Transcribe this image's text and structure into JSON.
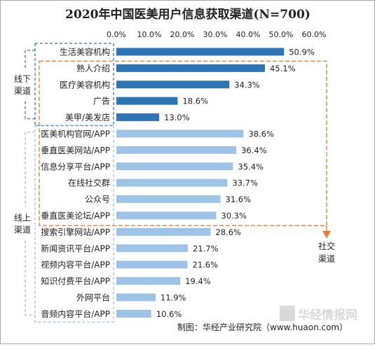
{
  "chart_data": {
    "type": "bar",
    "orientation": "horizontal",
    "title": "2020年中国医美用户信息获取渠道(N=700)",
    "categories": [
      "生活美容机构",
      "熟人介绍",
      "医疗美容机构",
      "广告",
      "美甲/美发店",
      "医美机构官网/APP",
      "垂直医美网站/APP",
      "信息分享平台/APP",
      "在线社交群",
      "公众号",
      "垂直医美论坛/APP",
      "搜索引擎网站/APP",
      "新闻资讯平台/APP",
      "视频内容平台/APP",
      "知识付费平台/APP",
      "外网平台",
      "音频内容平台/APP"
    ],
    "values": [
      50.9,
      45.1,
      34.3,
      18.6,
      13.0,
      38.6,
      36.4,
      35.4,
      33.7,
      31.6,
      30.3,
      28.6,
      21.7,
      21.6,
      19.4,
      11.9,
      10.6
    ],
    "value_labels": [
      "50.9%",
      "45.1%",
      "34.3%",
      "18.6%",
      "13.0%",
      "38.6%",
      "36.4%",
      "35.4%",
      "33.7%",
      "31.6%",
      "30.3%",
      "28.6%",
      "21.7%",
      "21.6%",
      "19.4%",
      "11.9%",
      "10.6%"
    ],
    "xlim": [
      0,
      60
    ],
    "ticks": [
      "0.0%",
      "10.0%",
      "20.0%",
      "30.0%",
      "40.0%",
      "50.0%",
      "60.0%"
    ],
    "tick_values": [
      0,
      10,
      20,
      30,
      40,
      50,
      60
    ],
    "groups": [
      {
        "label_lines": [
          "线下",
          "渠道"
        ],
        "color": "#2e75b6",
        "first": 0,
        "last": 4
      },
      {
        "label_lines": [
          "线上",
          "渠道"
        ],
        "color": "#9dc3e6",
        "first": 5,
        "last": 16
      }
    ],
    "annotation": {
      "label_lines": [
        "社交",
        "渠道"
      ],
      "color": "#ed7d31",
      "first": 1,
      "last": 11
    },
    "colors": {
      "offline_bar": "#2e75b6",
      "online_bar": "#9dc3e6",
      "highlight": "#ed7d31"
    }
  },
  "watermark": "华经情报网",
  "source": "制图：华经产业研究院（www.huaon.com）"
}
